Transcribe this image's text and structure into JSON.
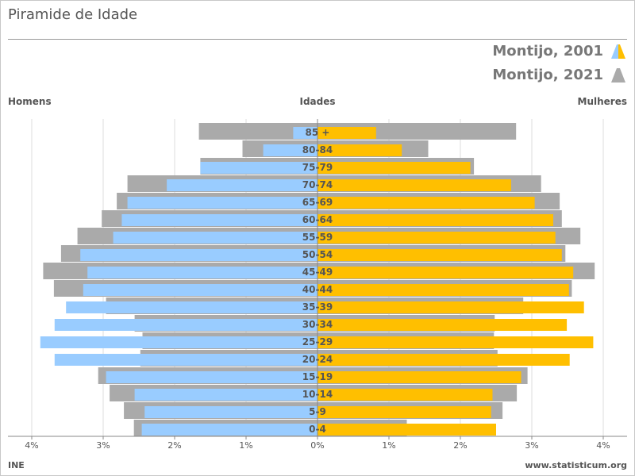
{
  "header": {
    "title": "Piramide de Idade",
    "legend_2001": "Montijo, 2001",
    "legend_2021": "Montijo, 2021",
    "left_heading": "Homens",
    "center_heading": "Idades",
    "right_heading": "Mulheres"
  },
  "footer": {
    "source": "INE",
    "site": "www.statisticum.org"
  },
  "colors": {
    "men_2001": "#99ccff",
    "women_2001": "#ffbf00",
    "year_2021": "#aaaaaa",
    "grid": "#dddddd",
    "axis": "#888888"
  },
  "chart_data": {
    "type": "bar",
    "orientation": "horizontal-population-pyramid",
    "categories": [
      "0-4",
      "5-9",
      "10-14",
      "15-19",
      "20-24",
      "25-29",
      "30-34",
      "35-39",
      "40-44",
      "45-49",
      "50-54",
      "55-59",
      "60-64",
      "65-69",
      "70-74",
      "75-79",
      "80-84",
      "85 +"
    ],
    "series": [
      {
        "name": "Montijo, 2001",
        "side": "Homens",
        "values": [
          2.46,
          2.42,
          2.56,
          2.96,
          3.68,
          3.88,
          3.68,
          3.52,
          3.28,
          3.22,
          3.32,
          2.86,
          2.74,
          2.66,
          2.11,
          1.64,
          0.76,
          0.34
        ]
      },
      {
        "name": "Montijo, 2001",
        "side": "Mulheres",
        "values": [
          2.5,
          2.43,
          2.45,
          2.85,
          3.53,
          3.86,
          3.49,
          3.73,
          3.52,
          3.58,
          3.42,
          3.33,
          3.3,
          3.04,
          2.71,
          2.14,
          1.18,
          0.82
        ]
      },
      {
        "name": "Montijo, 2021",
        "side": "Homens",
        "values": [
          2.57,
          2.71,
          2.91,
          3.07,
          2.48,
          2.45,
          2.56,
          2.96,
          3.69,
          3.84,
          3.59,
          3.36,
          3.02,
          2.81,
          2.66,
          1.64,
          1.05,
          1.66
        ]
      },
      {
        "name": "Montijo, 2021",
        "side": "Mulheres",
        "values": [
          1.25,
          2.59,
          2.79,
          2.94,
          2.52,
          2.47,
          2.48,
          2.88,
          3.56,
          3.88,
          3.47,
          3.68,
          3.42,
          3.39,
          3.13,
          2.19,
          1.55,
          2.78
        ]
      }
    ],
    "xticks": [
      "4%",
      "3%",
      "2%",
      "1%",
      "0%",
      "1%",
      "2%",
      "3%",
      "4%"
    ],
    "xlim": [
      -4,
      4
    ],
    "grid": true,
    "legend_position": "top-right"
  }
}
